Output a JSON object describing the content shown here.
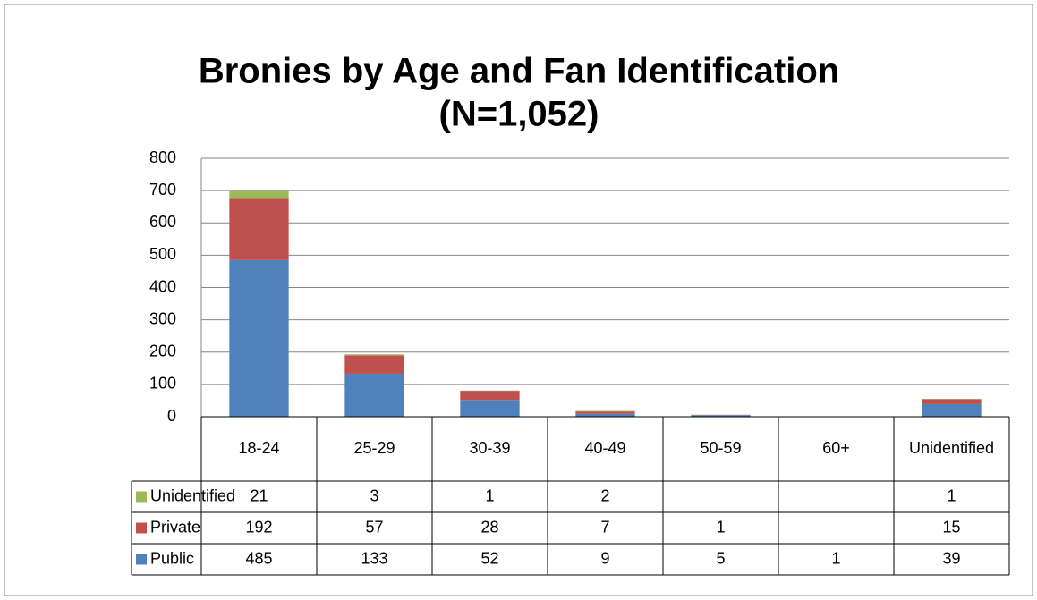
{
  "chart_data": {
    "type": "stacked_bar",
    "title": "Bronies by Age and Fan Identification",
    "subtitle": "(N=1,052)",
    "categories": [
      "18-24",
      "25-29",
      "30-39",
      "40-49",
      "50-59",
      "60+",
      "Unidentified"
    ],
    "series": [
      {
        "name": "Public",
        "color": "#4f81bd",
        "values": [
          485,
          133,
          52,
          9,
          5,
          1,
          39
        ]
      },
      {
        "name": "Private",
        "color": "#c0504d",
        "values": [
          192,
          57,
          28,
          7,
          1,
          null,
          15
        ]
      },
      {
        "name": "Unidentified",
        "color": "#9bbb59",
        "values": [
          21,
          3,
          1,
          2,
          null,
          null,
          1
        ]
      }
    ],
    "ylim": [
      0,
      800
    ],
    "yticks": [
      0,
      100,
      200,
      300,
      400,
      500,
      600,
      700,
      800
    ],
    "grid": true,
    "data_table": true
  }
}
